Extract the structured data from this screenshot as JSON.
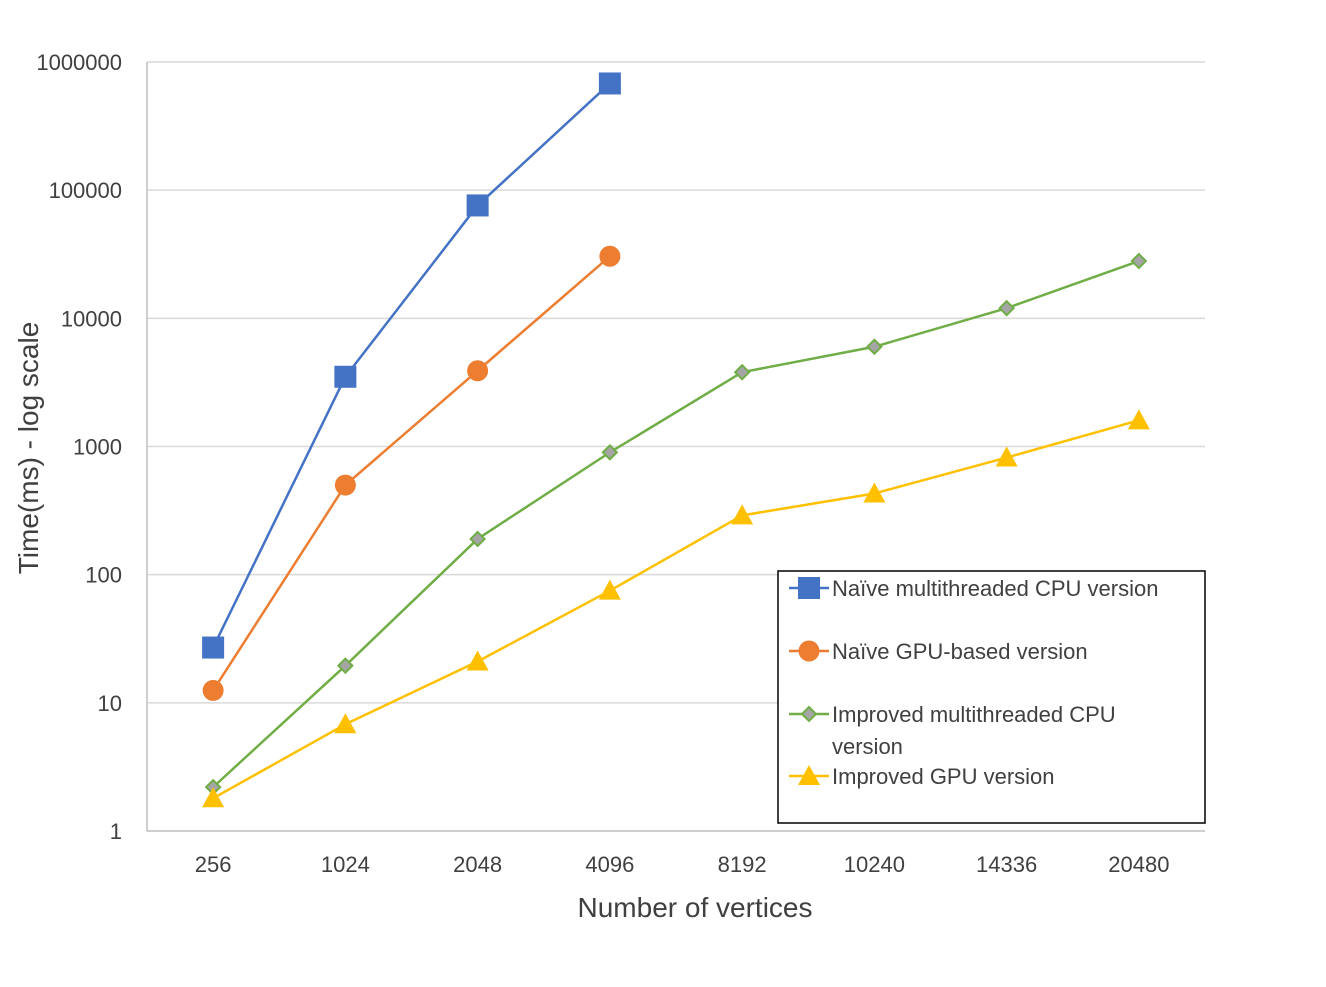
{
  "chart_data": {
    "type": "line",
    "title": "",
    "xlabel": "Number of vertices",
    "ylabel": "Time(ms) - log scale",
    "y_scale": "log",
    "ylim": [
      1,
      1000000
    ],
    "y_ticks": [
      "1",
      "10",
      "100",
      "1000",
      "10000",
      "100000",
      "1000000"
    ],
    "categories": [
      "256",
      "1024",
      "2048",
      "4096",
      "8192",
      "10240",
      "14336",
      "20480"
    ],
    "grid": "horizontal",
    "legend_position": "bottom-right",
    "series": [
      {
        "name": "Naïve multithreaded CPU version",
        "color": "#4472C4",
        "marker": "square",
        "values": [
          27,
          3500,
          76000,
          680000,
          null,
          null,
          null,
          null
        ]
      },
      {
        "name": "Naïve GPU-based version",
        "color": "#ED7D31",
        "marker": "circle",
        "values": [
          12.5,
          500,
          3900,
          30500,
          null,
          null,
          null,
          null
        ]
      },
      {
        "name": "Improved multithreaded CPU version",
        "color": "#70AD47",
        "marker": "diamond",
        "values": [
          2.2,
          19.5,
          190,
          900,
          3800,
          6000,
          12000,
          28000
        ]
      },
      {
        "name": "Improved GPU version",
        "color": "#FFC000",
        "marker": "triangle",
        "values": [
          1.8,
          6.8,
          21,
          75,
          290,
          430,
          820,
          1600
        ]
      }
    ]
  }
}
